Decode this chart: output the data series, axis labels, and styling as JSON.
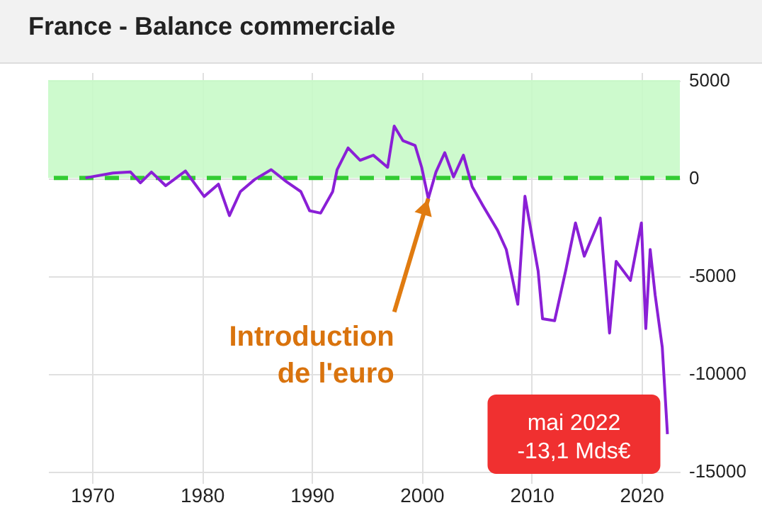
{
  "chart_data": {
    "type": "line",
    "title": "France - Balance commerciale",
    "x": [
      1969.4,
      1971.9,
      1973.5,
      1974.4,
      1975.4,
      1976.7,
      1978.5,
      1980.2,
      1981.5,
      1982.5,
      1983.5,
      1984.8,
      1986.3,
      1987.7,
      1989,
      1989.8,
      1990.8,
      1991.9,
      1992.3,
      1993.3,
      1994.4,
      1995.6,
      1996.9,
      1997.5,
      1998.3,
      1999.4,
      2000,
      2000.6,
      2001.3,
      2002.1,
      2002.9,
      2003.8,
      2004.6,
      2005.6,
      2006.9,
      2007.7,
      2008.75,
      2009.4,
      2010.6,
      2011,
      2012.1,
      2013.1,
      2014,
      2014.8,
      2016.25,
      2017.1,
      2017.7,
      2019,
      2020,
      2020.4,
      2020.8,
      2021.25,
      2021.9,
      2022.37
    ],
    "series": [
      {
        "color": "#8a1fd6",
        "values": [
          0,
          250,
          300,
          -250,
          300,
          -400,
          350,
          -950,
          -320,
          -1930,
          -700,
          -80,
          420,
          -200,
          -700,
          -1680,
          -1800,
          -700,
          420,
          1530,
          900,
          1160,
          540,
          2650,
          1900,
          1660,
          540,
          -1060,
          300,
          1290,
          50,
          1160,
          -450,
          -1440,
          -2670,
          -3660,
          -6460,
          -940,
          -4760,
          -7200,
          -7300,
          -4760,
          -2300,
          -4000,
          -2050,
          -7930,
          -4270,
          -5240,
          -2300,
          -7700,
          -3660,
          -5980,
          -8660,
          -13100
        ]
      }
    ],
    "xlim": [
      1966,
      2023.5
    ],
    "xticks": [
      1970,
      1980,
      1990,
      2000,
      2010,
      2020
    ],
    "ylim": [
      -15600,
      5400
    ],
    "yticks": [
      5000,
      0,
      -5000,
      -10000,
      -15000
    ],
    "grid": true,
    "line_style": "solid",
    "bands": [
      {
        "axis": "y",
        "from": 0,
        "to": 5000,
        "color": "#c8fac8"
      }
    ],
    "ref_lines": [
      {
        "axis": "y",
        "value": 0,
        "color": "#33cc33",
        "line_style": "dashed"
      }
    ],
    "annotations": [
      {
        "text": "Introduction\nde l'euro",
        "x": 2000.6,
        "y": -1060
      },
      {
        "text": "mai 2022\n-13,1 Mds€",
        "x": 2022.37,
        "y": -13100
      }
    ]
  }
}
